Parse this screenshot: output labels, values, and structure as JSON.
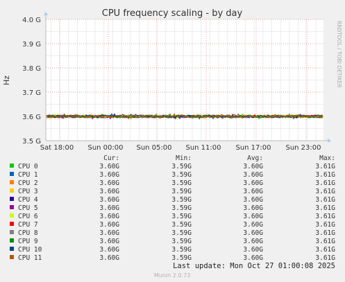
{
  "chart_data": {
    "type": "line",
    "title": "CPU frequency scaling - by day",
    "ylabel": "Hz",
    "side_label": "RRDTOOL / TOBI OETIKER",
    "ylim": [
      3.5,
      4.0
    ],
    "y_ticks": [
      {
        "value": 4.0,
        "label": "4.0 G"
      },
      {
        "value": 3.9,
        "label": "3.9 G"
      },
      {
        "value": 3.8,
        "label": "3.8 G"
      },
      {
        "value": 3.7,
        "label": "3.7 G"
      },
      {
        "value": 3.6,
        "label": "3.6 G"
      },
      {
        "value": 3.5,
        "label": "3.5 G"
      }
    ],
    "x_ticks": [
      "Sat 18:00",
      "Sun 00:00",
      "Sun 05:00",
      "Sun 11:00",
      "Sun 17:00",
      "Sun 23:00"
    ],
    "grid": true,
    "legend_headers": [
      "Cur:",
      "Min:",
      "Avg:",
      "Max:"
    ],
    "series": [
      {
        "name": "CPU 0",
        "color": "#00cc00",
        "cur": "3.60G",
        "min": "3.59G",
        "avg": "3.60G",
        "max": "3.61G"
      },
      {
        "name": "CPU 1",
        "color": "#0066b3",
        "cur": "3.60G",
        "min": "3.59G",
        "avg": "3.60G",
        "max": "3.61G"
      },
      {
        "name": "CPU 2",
        "color": "#ff8000",
        "cur": "3.60G",
        "min": "3.59G",
        "avg": "3.60G",
        "max": "3.61G"
      },
      {
        "name": "CPU 3",
        "color": "#ffcc00",
        "cur": "3.60G",
        "min": "3.59G",
        "avg": "3.60G",
        "max": "3.61G"
      },
      {
        "name": "CPU 4",
        "color": "#330099",
        "cur": "3.60G",
        "min": "3.59G",
        "avg": "3.60G",
        "max": "3.61G"
      },
      {
        "name": "CPU 5",
        "color": "#990099",
        "cur": "3.60G",
        "min": "3.59G",
        "avg": "3.60G",
        "max": "3.61G"
      },
      {
        "name": "CPU 6",
        "color": "#ccff00",
        "cur": "3.60G",
        "min": "3.59G",
        "avg": "3.60G",
        "max": "3.61G"
      },
      {
        "name": "CPU 7",
        "color": "#ff0000",
        "cur": "3.60G",
        "min": "3.59G",
        "avg": "3.60G",
        "max": "3.61G"
      },
      {
        "name": "CPU 8",
        "color": "#808080",
        "cur": "3.60G",
        "min": "3.59G",
        "avg": "3.60G",
        "max": "3.61G"
      },
      {
        "name": "CPU 9",
        "color": "#008f00",
        "cur": "3.60G",
        "min": "3.59G",
        "avg": "3.60G",
        "max": "3.61G"
      },
      {
        "name": "CPU 10",
        "color": "#00487d",
        "cur": "3.60G",
        "min": "3.59G",
        "avg": "3.60G",
        "max": "3.61G"
      },
      {
        "name": "CPU 11",
        "color": "#b35a00",
        "cur": "3.60G",
        "min": "3.59G",
        "avg": "3.60G",
        "max": "3.61G"
      }
    ],
    "line_value_approx": 3.6,
    "line_range": [
      3.59,
      3.61
    ],
    "last_update": "Last update: Mon Oct 27 01:00:08 2025",
    "footer": "Munin 2.0.73"
  }
}
